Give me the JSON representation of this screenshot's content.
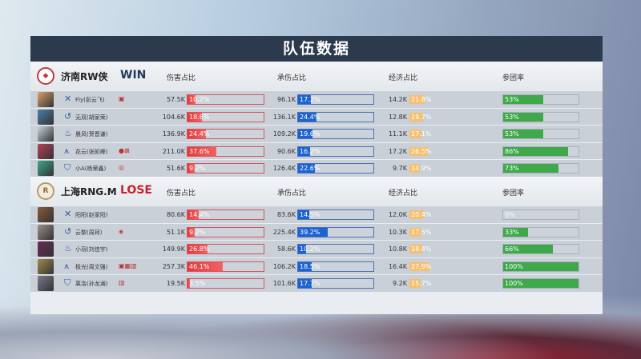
{
  "title": "队伍数据",
  "columns": {
    "damage": "伤害占比",
    "taken": "承伤占比",
    "economy": "经济占比",
    "participation": "参团率"
  },
  "colors": {
    "damage": "#e23a3a",
    "taken": "#1c63d2",
    "economy": "#f5c070",
    "participation": "#3ea84a",
    "win": "#23395d",
    "lose": "#c8202c"
  },
  "teams": [
    {
      "name": "济南RW侠",
      "result": "WIN",
      "logo": "RW",
      "players": [
        {
          "name": "Fly(彭云飞)",
          "role_icon": "sword-icon",
          "items": "▣",
          "damage": "57.5K",
          "damage_pct": 10.2,
          "taken": "96.1K",
          "taken_pct": 17.2,
          "economy": "14.2K",
          "economy_pct": 21.8,
          "participation": 53
        },
        {
          "name": "无双(胡家荣)",
          "role_icon": "swirl-icon",
          "items": "",
          "damage": "104.6K",
          "damage_pct": 18.6,
          "taken": "136.1K",
          "taken_pct": 24.4,
          "economy": "12.8K",
          "economy_pct": 19.7,
          "participation": 53
        },
        {
          "name": "晨风(贺晋谦)",
          "role_icon": "flame-icon",
          "items": "",
          "damage": "136.9K",
          "damage_pct": 24.4,
          "taken": "109.2K",
          "taken_pct": 19.6,
          "economy": "11.1K",
          "economy_pct": 17.1,
          "participation": 53
        },
        {
          "name": "花云(张凯峰)",
          "role_icon": "bow-icon",
          "items": "●⊠",
          "damage": "211.0K",
          "damage_pct": 37.6,
          "taken": "90.6K",
          "taken_pct": 16.2,
          "economy": "17.2K",
          "economy_pct": 26.5,
          "participation": 86
        },
        {
          "name": "小A(杨荣鑫)",
          "role_icon": "shield-icon",
          "items": "◎",
          "damage": "51.6K",
          "damage_pct": 9.2,
          "taken": "126.4K",
          "taken_pct": 22.6,
          "economy": "9.7K",
          "economy_pct": 14.9,
          "participation": 73
        }
      ]
    },
    {
      "name": "上海RNG.M",
      "result": "LOSE",
      "logo": "R",
      "players": [
        {
          "name": "阳阳(赵家阳)",
          "role_icon": "sword-icon",
          "items": "",
          "damage": "80.6K",
          "damage_pct": 14.4,
          "taken": "83.6K",
          "taken_pct": 14.5,
          "economy": "12.0K",
          "economy_pct": 20.4,
          "participation": 0
        },
        {
          "name": "云黎(周珂)",
          "role_icon": "swirl-icon",
          "items": "◈",
          "damage": "51.1K",
          "damage_pct": 9.2,
          "taken": "225.4K",
          "taken_pct": 39.2,
          "economy": "10.3K",
          "economy_pct": 17.5,
          "participation": 33
        },
        {
          "name": "小羽(刘佳宇)",
          "role_icon": "flame-icon",
          "items": "",
          "damage": "149.9K",
          "damage_pct": 26.8,
          "taken": "58.6K",
          "taken_pct": 10.2,
          "economy": "10.8K",
          "economy_pct": 18.4,
          "participation": 66
        },
        {
          "name": "极光(周文强)",
          "role_icon": "bow-icon",
          "items": "▣▦▥",
          "damage": "257.3K",
          "damage_pct": 46.1,
          "taken": "106.2K",
          "taken_pct": 18.5,
          "economy": "16.4K",
          "economy_pct": 27.9,
          "participation": 100
        },
        {
          "name": "离洛(孙龙澜)",
          "role_icon": "shield-icon",
          "items": "▥",
          "damage": "19.5K",
          "damage_pct": 3.5,
          "taken": "101.6K",
          "taken_pct": 17.7,
          "economy": "9.2K",
          "economy_pct": 15.7,
          "participation": 100
        }
      ]
    }
  ]
}
